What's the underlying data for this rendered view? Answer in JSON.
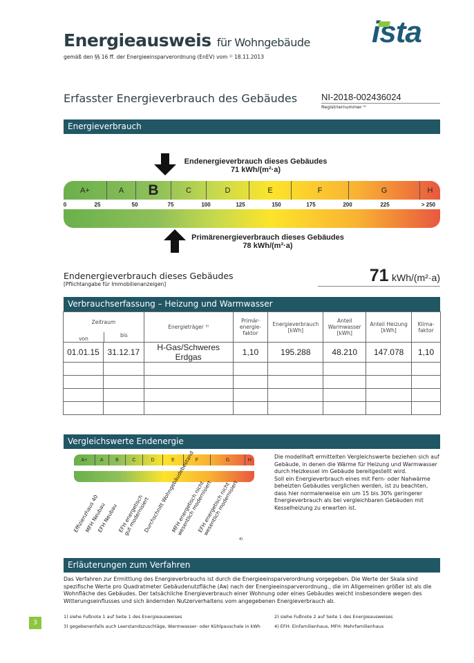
{
  "header": {
    "title_main": "Energieausweis",
    "title_rest": "für Wohngebäude",
    "subtitle": "gemäß den §§ 16 ff. der Energieeinsparverordnung (EnEV) vom ¹⁾ 18.11.2013",
    "logo": "ista"
  },
  "section_title": "Erfasster Energieverbrauch des Gebäudes",
  "registration": {
    "number": "NI-2018-002436024",
    "label": "Registriernummer ²⁾"
  },
  "energy": {
    "band": "Energieverbrauch",
    "end_label": "Endenergieverbrauch dieses Gebäudes",
    "end_value": "71 kWh/(m²·a)",
    "primary_label": "Primärenergieverbrauch dieses Gebäudes",
    "primary_value": "78 kWh/(m²·a)",
    "classes": [
      "A+",
      "A",
      "B",
      "C",
      "D",
      "E",
      "F",
      "G",
      "H"
    ],
    "active_class": "B",
    "ticks": [
      "0",
      "25",
      "50",
      "75",
      "100",
      "125",
      "150",
      "175",
      "200",
      "225",
      "> 250"
    ],
    "end_kwh": 71,
    "primary_kwh": 78
  },
  "summary": {
    "label": "Endenergieverbrauch dieses Gebäudes",
    "note": "[Pflichtangabe für Immobilienanzeigen]",
    "value": "71",
    "unit": "kWh/(m²·a)"
  },
  "consumption": {
    "band": "Verbrauchserfassung – Heizung und Warmwasser",
    "headers": {
      "zeitraum": "Zeitraum",
      "von": "von",
      "bis": "bis",
      "traeger": "Energieträger ³⁾",
      "pef": "Primär-energie-faktor",
      "verbrauch": "Energieverbrauch [kWh]",
      "ww": "Anteil Warmwasser [kWh]",
      "heiz": "Anteil Heizung [kWh]",
      "klima": "Klima-faktor"
    },
    "rows": [
      {
        "von": "01.01.15",
        "bis": "31.12.17",
        "traeger": "H-Gas/Schweres Erdgas",
        "pef": "1,10",
        "verbrauch": "195.288",
        "ww": "48.210",
        "heiz": "147.078",
        "klima": "1,10"
      }
    ]
  },
  "compare": {
    "band": "Vergleichswerte Endenergie",
    "refs": [
      "Effizienzhaus 40",
      "MFH Neubau",
      "EFH Neubau",
      "EFH energetisch gut modernisiert",
      "Durchschnitt Wohngebäudebestand",
      "MFH energetisch nicht wesentlich modernisiert",
      "EFH energetisch nicht wesentlich modernisiert"
    ],
    "footnote": "4)",
    "text": "Die modellhaft ermittelten Vergleichswerte beziehen sich auf Gebäude, in denen die Wärme für Heizung und Warmwasser durch Heizkessel im Gebäude bereitgestellt wird.\nSoll ein Energieverbrauch eines mit Fern- oder Nahwärme beheizten Gebäudes verglichen werden, ist zu beachten, dass hier normalerweise ein um 15 bis 30% geringerer Energieverbrauch als bei vergleichbaren Gebäuden mit Kesselheizung zu erwarten ist."
  },
  "explain": {
    "band": "Erläuterungen zum Verfahren",
    "text": "Das Verfahren zur Ermittlung des Energieverbrauchs ist durch die Energieeinsparverordnung vorgegeben. Die Werte der Skala sind spezifische Werte pro Quadratmeter Gebäudenutzfläche (Aɴ) nach der Energieeinsparverordnung., die im Allgemeinen größer ist als die Wohnfläche des Gebäudes. Der tatsächliche Energieverbrauch einer Wohnung oder eines Gebäudes weicht insbesondere wegen des Witterungseinflusses und sich ändernden Nutzerverhaltens vom angegebenen Energieverbrauch ab.",
    "footnotes": [
      "1) siehe Fußnote 1 auf Seite 1 des Energieausweises",
      "2) siehe Fußnote 2 auf Seite 1 des Energieausweises",
      "3) gegebenenfalls auch Leerstandszuschläge, Warmwasser- oder Kühlpauschale in kWh",
      "4) EFH: Einfamilienhaus, MFH: Mehrfamilienhaus"
    ]
  },
  "page_number": "3",
  "colors": {
    "band": "#215665",
    "logo": "#1f5a78",
    "page_badge": "#8dc63f"
  }
}
